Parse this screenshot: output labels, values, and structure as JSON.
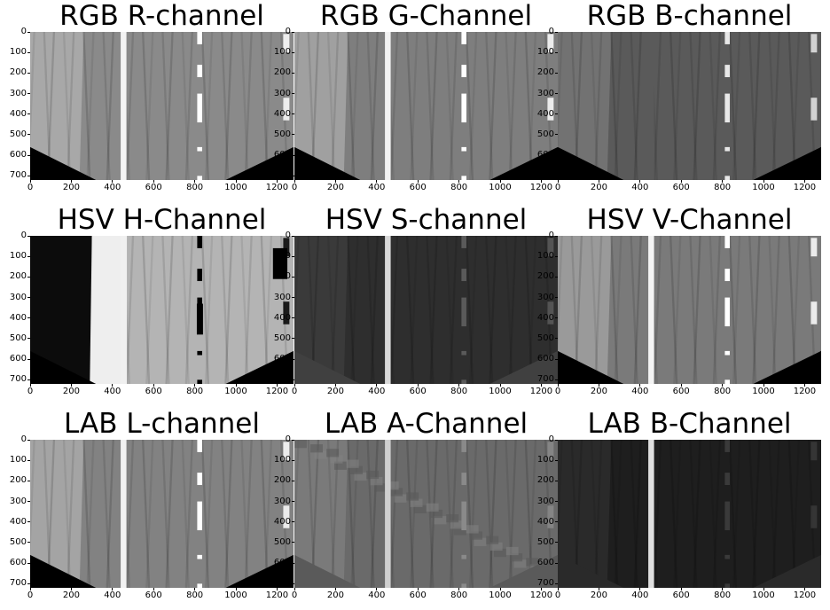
{
  "figure": {
    "panels": [
      {
        "title": "RGB R-channel"
      },
      {
        "title": "RGB G-Channel"
      },
      {
        "title": "RGB B-channel"
      },
      {
        "title": "HSV H-Channel"
      },
      {
        "title": "HSV S-channel"
      },
      {
        "title": "HSV V-Channel"
      },
      {
        "title": "LAB L-channel"
      },
      {
        "title": "LAB A-Channel"
      },
      {
        "title": "LAB B-Channel"
      }
    ],
    "x_ticks": [
      "0",
      "200",
      "400",
      "600",
      "800",
      "1000",
      "1200"
    ],
    "y_ticks": [
      "0",
      "100",
      "200",
      "300",
      "400",
      "500",
      "600",
      "700"
    ],
    "x_tick_values": [
      0,
      200,
      400,
      600,
      800,
      1000,
      1200
    ],
    "y_tick_values": [
      0,
      100,
      200,
      300,
      400,
      500,
      600,
      700
    ],
    "image_width": 1280,
    "image_height": 720
  }
}
